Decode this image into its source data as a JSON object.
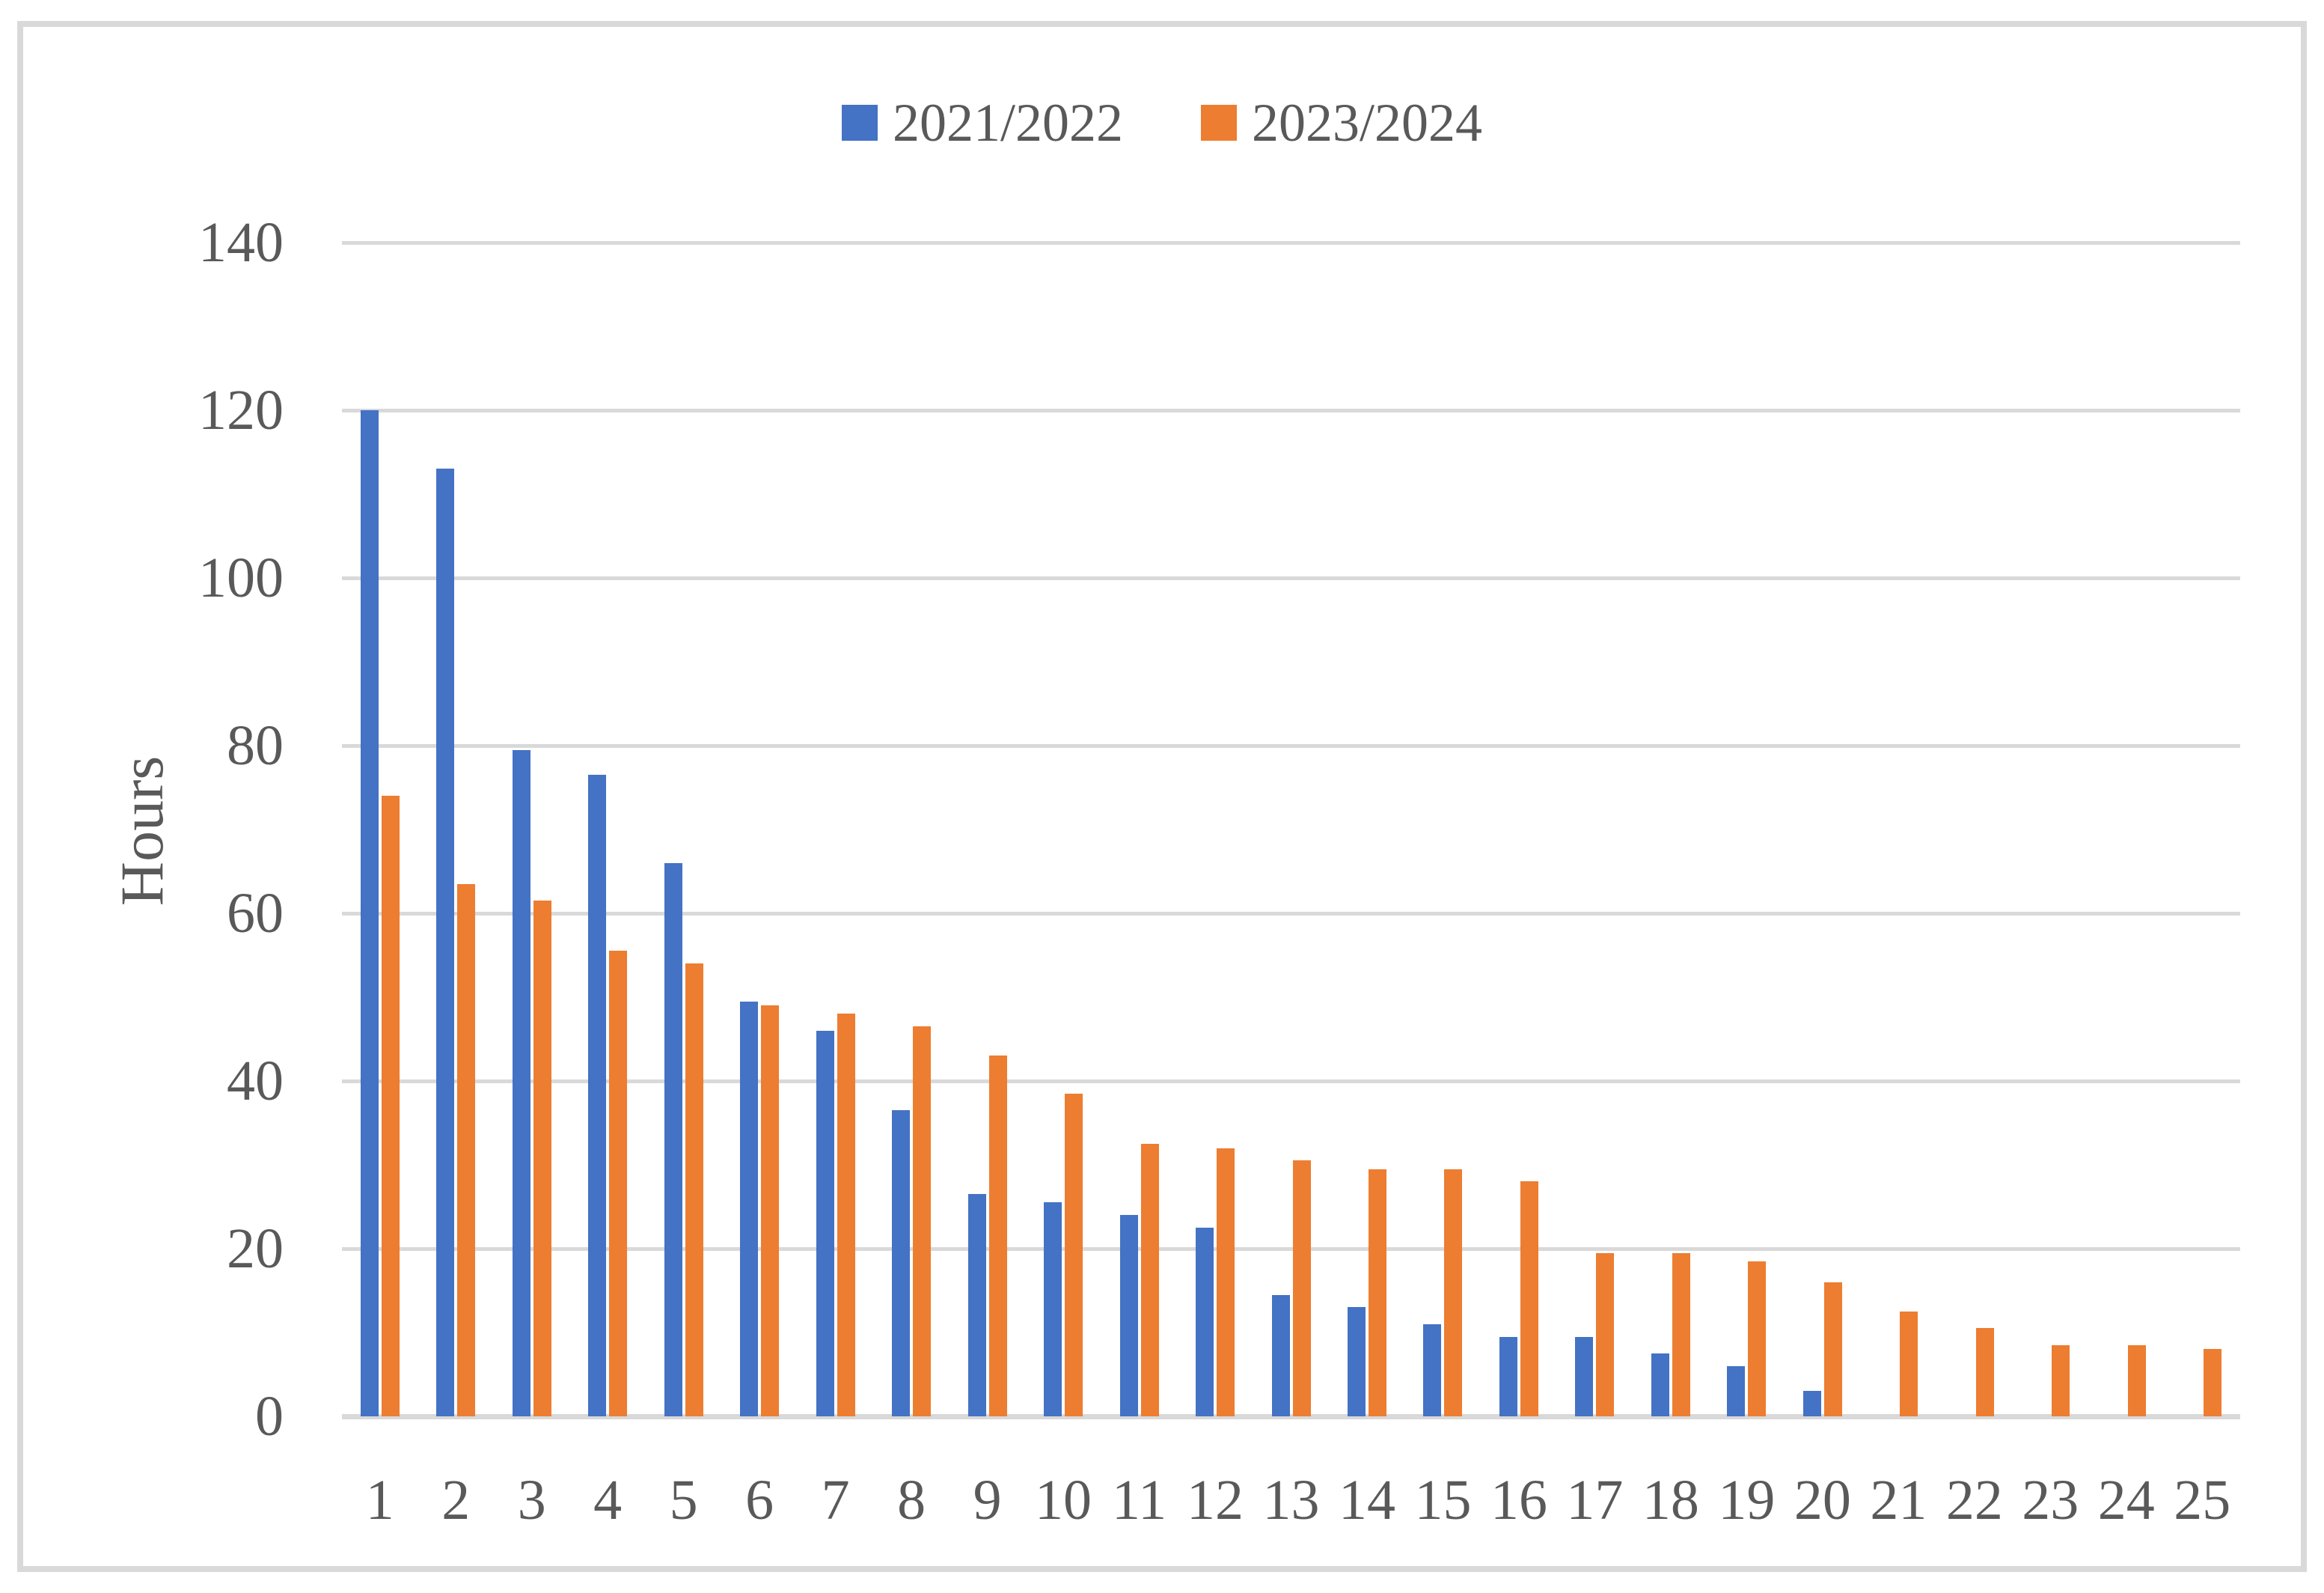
{
  "chart_data": {
    "type": "bar",
    "title": "",
    "ylabel": "Hours",
    "xlabel": "",
    "ylim": [
      0,
      140
    ],
    "ytick_step": 20,
    "grid": true,
    "legend_position": "top-center",
    "categories": [
      "1",
      "2",
      "3",
      "4",
      "5",
      "6",
      "7",
      "8",
      "9",
      "10",
      "11",
      "12",
      "13",
      "14",
      "15",
      "16",
      "17",
      "18",
      "19",
      "20",
      "21",
      "22",
      "23",
      "24",
      "25"
    ],
    "series": [
      {
        "name": "2021/2022",
        "color": "#4472C4",
        "values": [
          120,
          113,
          79.5,
          76.5,
          66,
          49.5,
          46,
          36.5,
          26.5,
          25.5,
          24,
          22.5,
          14.5,
          13,
          11,
          9.5,
          9.5,
          7.5,
          6,
          3,
          null,
          null,
          null,
          null,
          null
        ]
      },
      {
        "name": "2023/2024",
        "color": "#ED7D31",
        "values": [
          74,
          63.5,
          61.5,
          55.5,
          54,
          49,
          48,
          46.5,
          43,
          38.5,
          32.5,
          32,
          30.5,
          29.5,
          29.5,
          28,
          19.5,
          19.5,
          18.5,
          16,
          12.5,
          10.5,
          8.5,
          8.5,
          8
        ]
      }
    ]
  },
  "colors": {
    "series1": "#4472C4",
    "series2": "#ED7D31",
    "gridline": "#D9D9D9",
    "axis_line": "#D9D9D9",
    "frame_border": "#D9D9D9",
    "text": "#595959",
    "background": "#FFFFFF"
  }
}
